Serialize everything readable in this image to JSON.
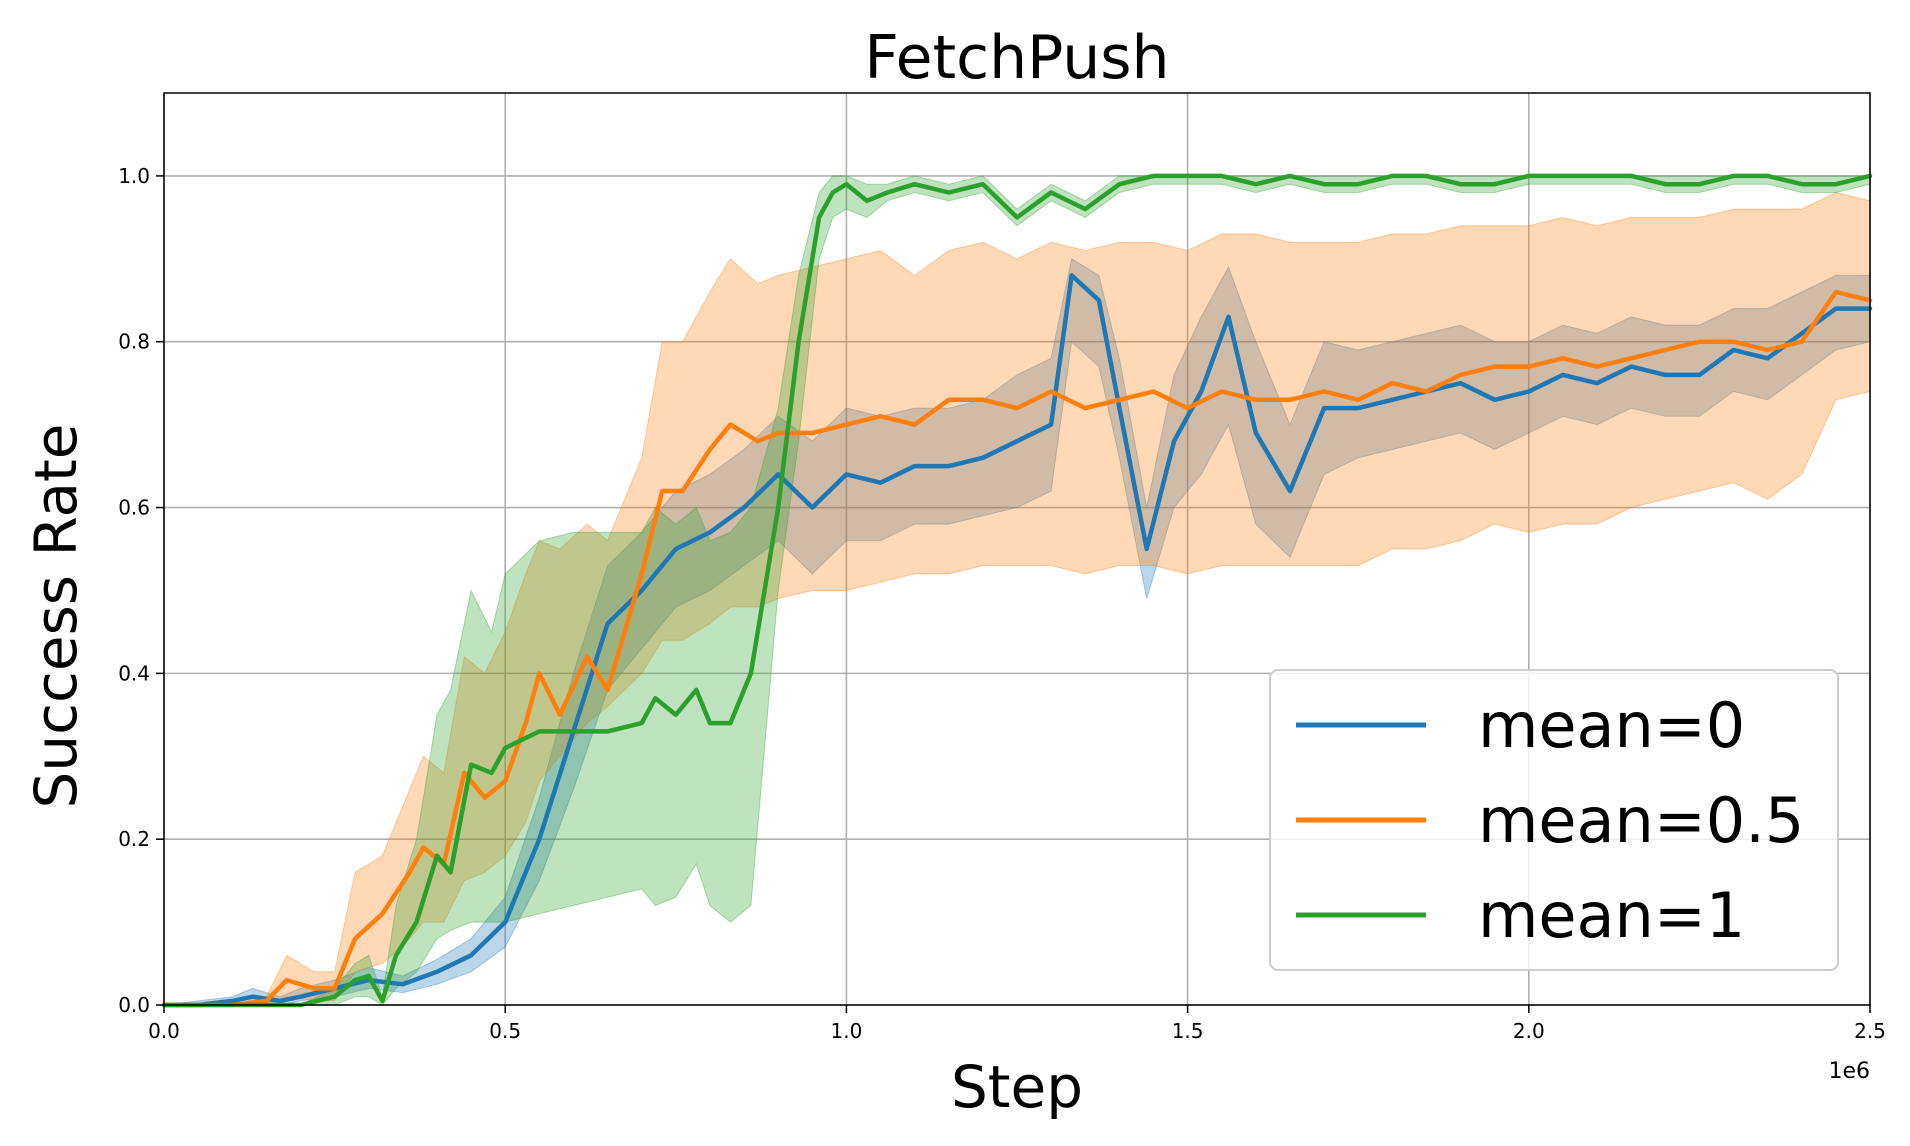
{
  "chart_data": {
    "type": "line",
    "title": "FetchPush",
    "xlabel": "Step",
    "ylabel": "Success Rate",
    "x_offset_label": "1e6",
    "xlim": [
      0,
      2.5
    ],
    "ylim": [
      0,
      1.1
    ],
    "xticks": [
      0.0,
      0.5,
      1.0,
      1.5,
      2.0,
      2.5
    ],
    "xtick_labels": [
      "0.0",
      "0.5",
      "1.0",
      "1.5",
      "2.0",
      "2.5"
    ],
    "yticks": [
      0.0,
      0.2,
      0.4,
      0.6,
      0.8,
      1.0
    ],
    "ytick_labels": [
      "0.0",
      "0.2",
      "0.4",
      "0.6",
      "0.8",
      "1.0"
    ],
    "grid": true,
    "legend_position": "lower-right",
    "series": [
      {
        "name": "mean=0",
        "color": "#1f77b4",
        "x": [
          0,
          0.05,
          0.1,
          0.13,
          0.17,
          0.2,
          0.25,
          0.3,
          0.35,
          0.4,
          0.45,
          0.5,
          0.55,
          0.6,
          0.65,
          0.7,
          0.75,
          0.8,
          0.85,
          0.9,
          0.95,
          1.0,
          1.05,
          1.1,
          1.15,
          1.2,
          1.25,
          1.3,
          1.33,
          1.37,
          1.4,
          1.44,
          1.48,
          1.52,
          1.56,
          1.6,
          1.65,
          1.7,
          1.75,
          1.8,
          1.85,
          1.9,
          1.95,
          2.0,
          2.05,
          2.1,
          2.15,
          2.2,
          2.25,
          2.3,
          2.35,
          2.4,
          2.45,
          2.5
        ],
        "y": [
          0.0,
          0.0,
          0.005,
          0.01,
          0.005,
          0.01,
          0.02,
          0.03,
          0.025,
          0.04,
          0.06,
          0.1,
          0.2,
          0.33,
          0.46,
          0.5,
          0.55,
          0.57,
          0.6,
          0.64,
          0.6,
          0.64,
          0.63,
          0.65,
          0.65,
          0.66,
          0.68,
          0.7,
          0.88,
          0.85,
          0.72,
          0.55,
          0.68,
          0.74,
          0.83,
          0.69,
          0.62,
          0.72,
          0.72,
          0.73,
          0.74,
          0.75,
          0.73,
          0.74,
          0.76,
          0.75,
          0.77,
          0.76,
          0.76,
          0.79,
          0.78,
          0.81,
          0.84,
          0.84
        ],
        "lower": [
          0.0,
          0.0,
          0.0,
          0.0,
          0.0,
          0.005,
          0.01,
          0.02,
          0.015,
          0.025,
          0.04,
          0.07,
          0.15,
          0.26,
          0.38,
          0.43,
          0.48,
          0.5,
          0.53,
          0.56,
          0.52,
          0.56,
          0.56,
          0.58,
          0.58,
          0.59,
          0.6,
          0.62,
          0.8,
          0.77,
          0.66,
          0.49,
          0.6,
          0.64,
          0.7,
          0.58,
          0.54,
          0.64,
          0.66,
          0.67,
          0.68,
          0.69,
          0.67,
          0.69,
          0.71,
          0.7,
          0.72,
          0.71,
          0.71,
          0.74,
          0.73,
          0.76,
          0.79,
          0.8
        ],
        "upper": [
          0.0,
          0.005,
          0.01,
          0.02,
          0.01,
          0.02,
          0.03,
          0.045,
          0.035,
          0.055,
          0.08,
          0.13,
          0.25,
          0.4,
          0.53,
          0.57,
          0.62,
          0.64,
          0.67,
          0.71,
          0.68,
          0.72,
          0.71,
          0.72,
          0.72,
          0.73,
          0.76,
          0.78,
          0.9,
          0.88,
          0.78,
          0.6,
          0.76,
          0.83,
          0.89,
          0.8,
          0.7,
          0.8,
          0.79,
          0.8,
          0.81,
          0.82,
          0.8,
          0.8,
          0.82,
          0.81,
          0.83,
          0.82,
          0.82,
          0.84,
          0.84,
          0.86,
          0.88,
          0.88
        ]
      },
      {
        "name": "mean=0.5",
        "color": "#ff7f0e",
        "x": [
          0,
          0.1,
          0.15,
          0.18,
          0.22,
          0.25,
          0.28,
          0.32,
          0.36,
          0.38,
          0.41,
          0.44,
          0.47,
          0.5,
          0.53,
          0.55,
          0.58,
          0.62,
          0.65,
          0.7,
          0.73,
          0.76,
          0.8,
          0.83,
          0.87,
          0.9,
          0.95,
          1.0,
          1.05,
          1.1,
          1.15,
          1.2,
          1.25,
          1.3,
          1.35,
          1.4,
          1.45,
          1.5,
          1.55,
          1.6,
          1.65,
          1.7,
          1.75,
          1.8,
          1.85,
          1.9,
          1.95,
          2.0,
          2.05,
          2.1,
          2.15,
          2.2,
          2.25,
          2.3,
          2.35,
          2.4,
          2.45,
          2.5
        ],
        "y": [
          0.0,
          0.0,
          0.005,
          0.03,
          0.02,
          0.02,
          0.08,
          0.11,
          0.16,
          0.19,
          0.17,
          0.28,
          0.25,
          0.27,
          0.34,
          0.4,
          0.35,
          0.42,
          0.38,
          0.52,
          0.62,
          0.62,
          0.67,
          0.7,
          0.68,
          0.69,
          0.69,
          0.7,
          0.71,
          0.7,
          0.73,
          0.73,
          0.72,
          0.74,
          0.72,
          0.73,
          0.74,
          0.72,
          0.74,
          0.73,
          0.73,
          0.74,
          0.73,
          0.75,
          0.74,
          0.76,
          0.77,
          0.77,
          0.78,
          0.77,
          0.78,
          0.79,
          0.8,
          0.8,
          0.79,
          0.8,
          0.86,
          0.85
        ],
        "lower": [
          0.0,
          0.0,
          0.0,
          0.01,
          0.005,
          0.005,
          0.04,
          0.05,
          0.08,
          0.1,
          0.1,
          0.15,
          0.16,
          0.18,
          0.22,
          0.27,
          0.3,
          0.34,
          0.36,
          0.4,
          0.44,
          0.44,
          0.46,
          0.48,
          0.48,
          0.49,
          0.5,
          0.5,
          0.51,
          0.52,
          0.52,
          0.53,
          0.53,
          0.53,
          0.52,
          0.53,
          0.53,
          0.52,
          0.53,
          0.53,
          0.53,
          0.53,
          0.53,
          0.55,
          0.55,
          0.56,
          0.58,
          0.57,
          0.58,
          0.58,
          0.6,
          0.61,
          0.62,
          0.63,
          0.61,
          0.64,
          0.73,
          0.74
        ],
        "upper": [
          0.0,
          0.0,
          0.01,
          0.06,
          0.04,
          0.04,
          0.16,
          0.18,
          0.26,
          0.3,
          0.28,
          0.42,
          0.4,
          0.45,
          0.52,
          0.56,
          0.55,
          0.58,
          0.56,
          0.66,
          0.8,
          0.8,
          0.86,
          0.9,
          0.87,
          0.88,
          0.89,
          0.9,
          0.91,
          0.88,
          0.91,
          0.92,
          0.9,
          0.92,
          0.91,
          0.92,
          0.92,
          0.91,
          0.93,
          0.93,
          0.92,
          0.92,
          0.92,
          0.93,
          0.93,
          0.94,
          0.94,
          0.94,
          0.95,
          0.94,
          0.95,
          0.95,
          0.95,
          0.96,
          0.96,
          0.96,
          0.98,
          0.97
        ]
      },
      {
        "name": "mean=1",
        "color": "#2ca02c",
        "x": [
          0,
          0.1,
          0.2,
          0.25,
          0.28,
          0.3,
          0.32,
          0.34,
          0.37,
          0.4,
          0.42,
          0.45,
          0.48,
          0.5,
          0.55,
          0.6,
          0.65,
          0.7,
          0.72,
          0.75,
          0.78,
          0.8,
          0.83,
          0.86,
          0.9,
          0.93,
          0.96,
          0.98,
          1.0,
          1.03,
          1.06,
          1.1,
          1.15,
          1.2,
          1.25,
          1.3,
          1.35,
          1.4,
          1.45,
          1.5,
          1.55,
          1.6,
          1.65,
          1.7,
          1.75,
          1.8,
          1.85,
          1.9,
          1.95,
          2.0,
          2.05,
          2.1,
          2.15,
          2.2,
          2.25,
          2.3,
          2.35,
          2.4,
          2.45,
          2.5
        ],
        "y": [
          0.0,
          0.0,
          0.0,
          0.01,
          0.03,
          0.035,
          0.005,
          0.06,
          0.1,
          0.18,
          0.16,
          0.29,
          0.28,
          0.31,
          0.33,
          0.33,
          0.33,
          0.34,
          0.37,
          0.35,
          0.38,
          0.34,
          0.34,
          0.4,
          0.6,
          0.8,
          0.95,
          0.98,
          0.99,
          0.97,
          0.98,
          0.99,
          0.98,
          0.99,
          0.95,
          0.98,
          0.96,
          0.99,
          1.0,
          1.0,
          1.0,
          0.99,
          1.0,
          0.99,
          0.99,
          1.0,
          1.0,
          0.99,
          0.99,
          1.0,
          1.0,
          1.0,
          1.0,
          0.99,
          0.99,
          1.0,
          1.0,
          0.99,
          0.99,
          1.0
        ],
        "lower": [
          0.0,
          0.0,
          0.0,
          0.0,
          0.01,
          0.01,
          0.0,
          0.02,
          0.04,
          0.08,
          0.09,
          0.1,
          0.1,
          0.1,
          0.11,
          0.12,
          0.13,
          0.14,
          0.12,
          0.13,
          0.17,
          0.12,
          0.1,
          0.12,
          0.5,
          0.68,
          0.9,
          0.95,
          0.96,
          0.95,
          0.97,
          0.98,
          0.97,
          0.98,
          0.94,
          0.97,
          0.95,
          0.98,
          0.99,
          0.99,
          0.99,
          0.98,
          0.99,
          0.98,
          0.98,
          0.99,
          0.99,
          0.98,
          0.98,
          0.99,
          0.99,
          0.99,
          0.99,
          0.98,
          0.98,
          0.99,
          0.99,
          0.98,
          0.98,
          0.99
        ],
        "upper": [
          0.0,
          0.0,
          0.0,
          0.02,
          0.05,
          0.06,
          0.01,
          0.12,
          0.2,
          0.35,
          0.38,
          0.5,
          0.45,
          0.52,
          0.56,
          0.57,
          0.57,
          0.57,
          0.6,
          0.58,
          0.6,
          0.56,
          0.57,
          0.6,
          0.72,
          0.88,
          0.98,
          1.0,
          1.0,
          0.99,
          0.99,
          1.0,
          0.99,
          1.0,
          0.96,
          0.99,
          0.97,
          1.0,
          1.0,
          1.0,
          1.0,
          1.0,
          1.0,
          1.0,
          1.0,
          1.0,
          1.0,
          1.0,
          1.0,
          1.0,
          1.0,
          1.0,
          1.0,
          1.0,
          1.0,
          1.0,
          1.0,
          1.0,
          1.0,
          1.0
        ]
      }
    ]
  }
}
